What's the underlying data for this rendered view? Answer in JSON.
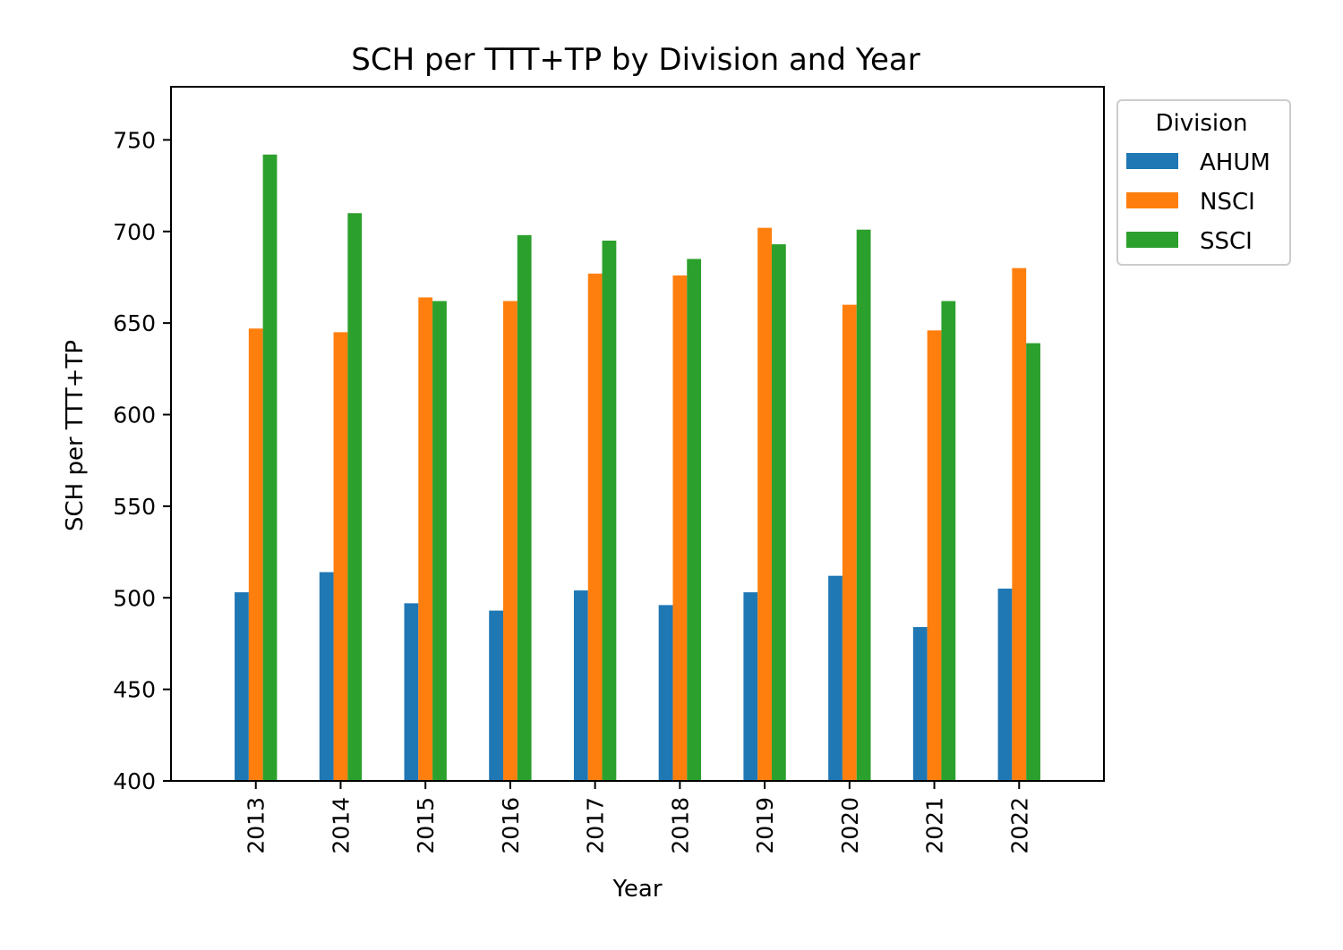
{
  "chart_data": {
    "type": "bar",
    "title": "SCH per TTT+TP by Division and Year",
    "xlabel": "Year",
    "ylabel": "SCH per TTT+TP",
    "categories": [
      "2013",
      "2014",
      "2015",
      "2016",
      "2017",
      "2018",
      "2019",
      "2020",
      "2021",
      "2022"
    ],
    "ylim": [
      400,
      779
    ],
    "yticks": [
      400,
      450,
      500,
      550,
      600,
      650,
      700,
      750
    ],
    "legend_title": "Division",
    "legend_placement": "outside-top-right",
    "grid": false,
    "series": [
      {
        "name": "AHUM",
        "color": "#1f77b4",
        "values": [
          503,
          514,
          497,
          493,
          504,
          496,
          503,
          512,
          484,
          505
        ]
      },
      {
        "name": "NSCI",
        "color": "#ff7f0e",
        "values": [
          647,
          645,
          664,
          662,
          677,
          676,
          702,
          660,
          646,
          680
        ]
      },
      {
        "name": "SSCI",
        "color": "#2ca02c",
        "values": [
          742,
          710,
          662,
          698,
          695,
          685,
          693,
          701,
          662,
          639
        ]
      }
    ]
  }
}
